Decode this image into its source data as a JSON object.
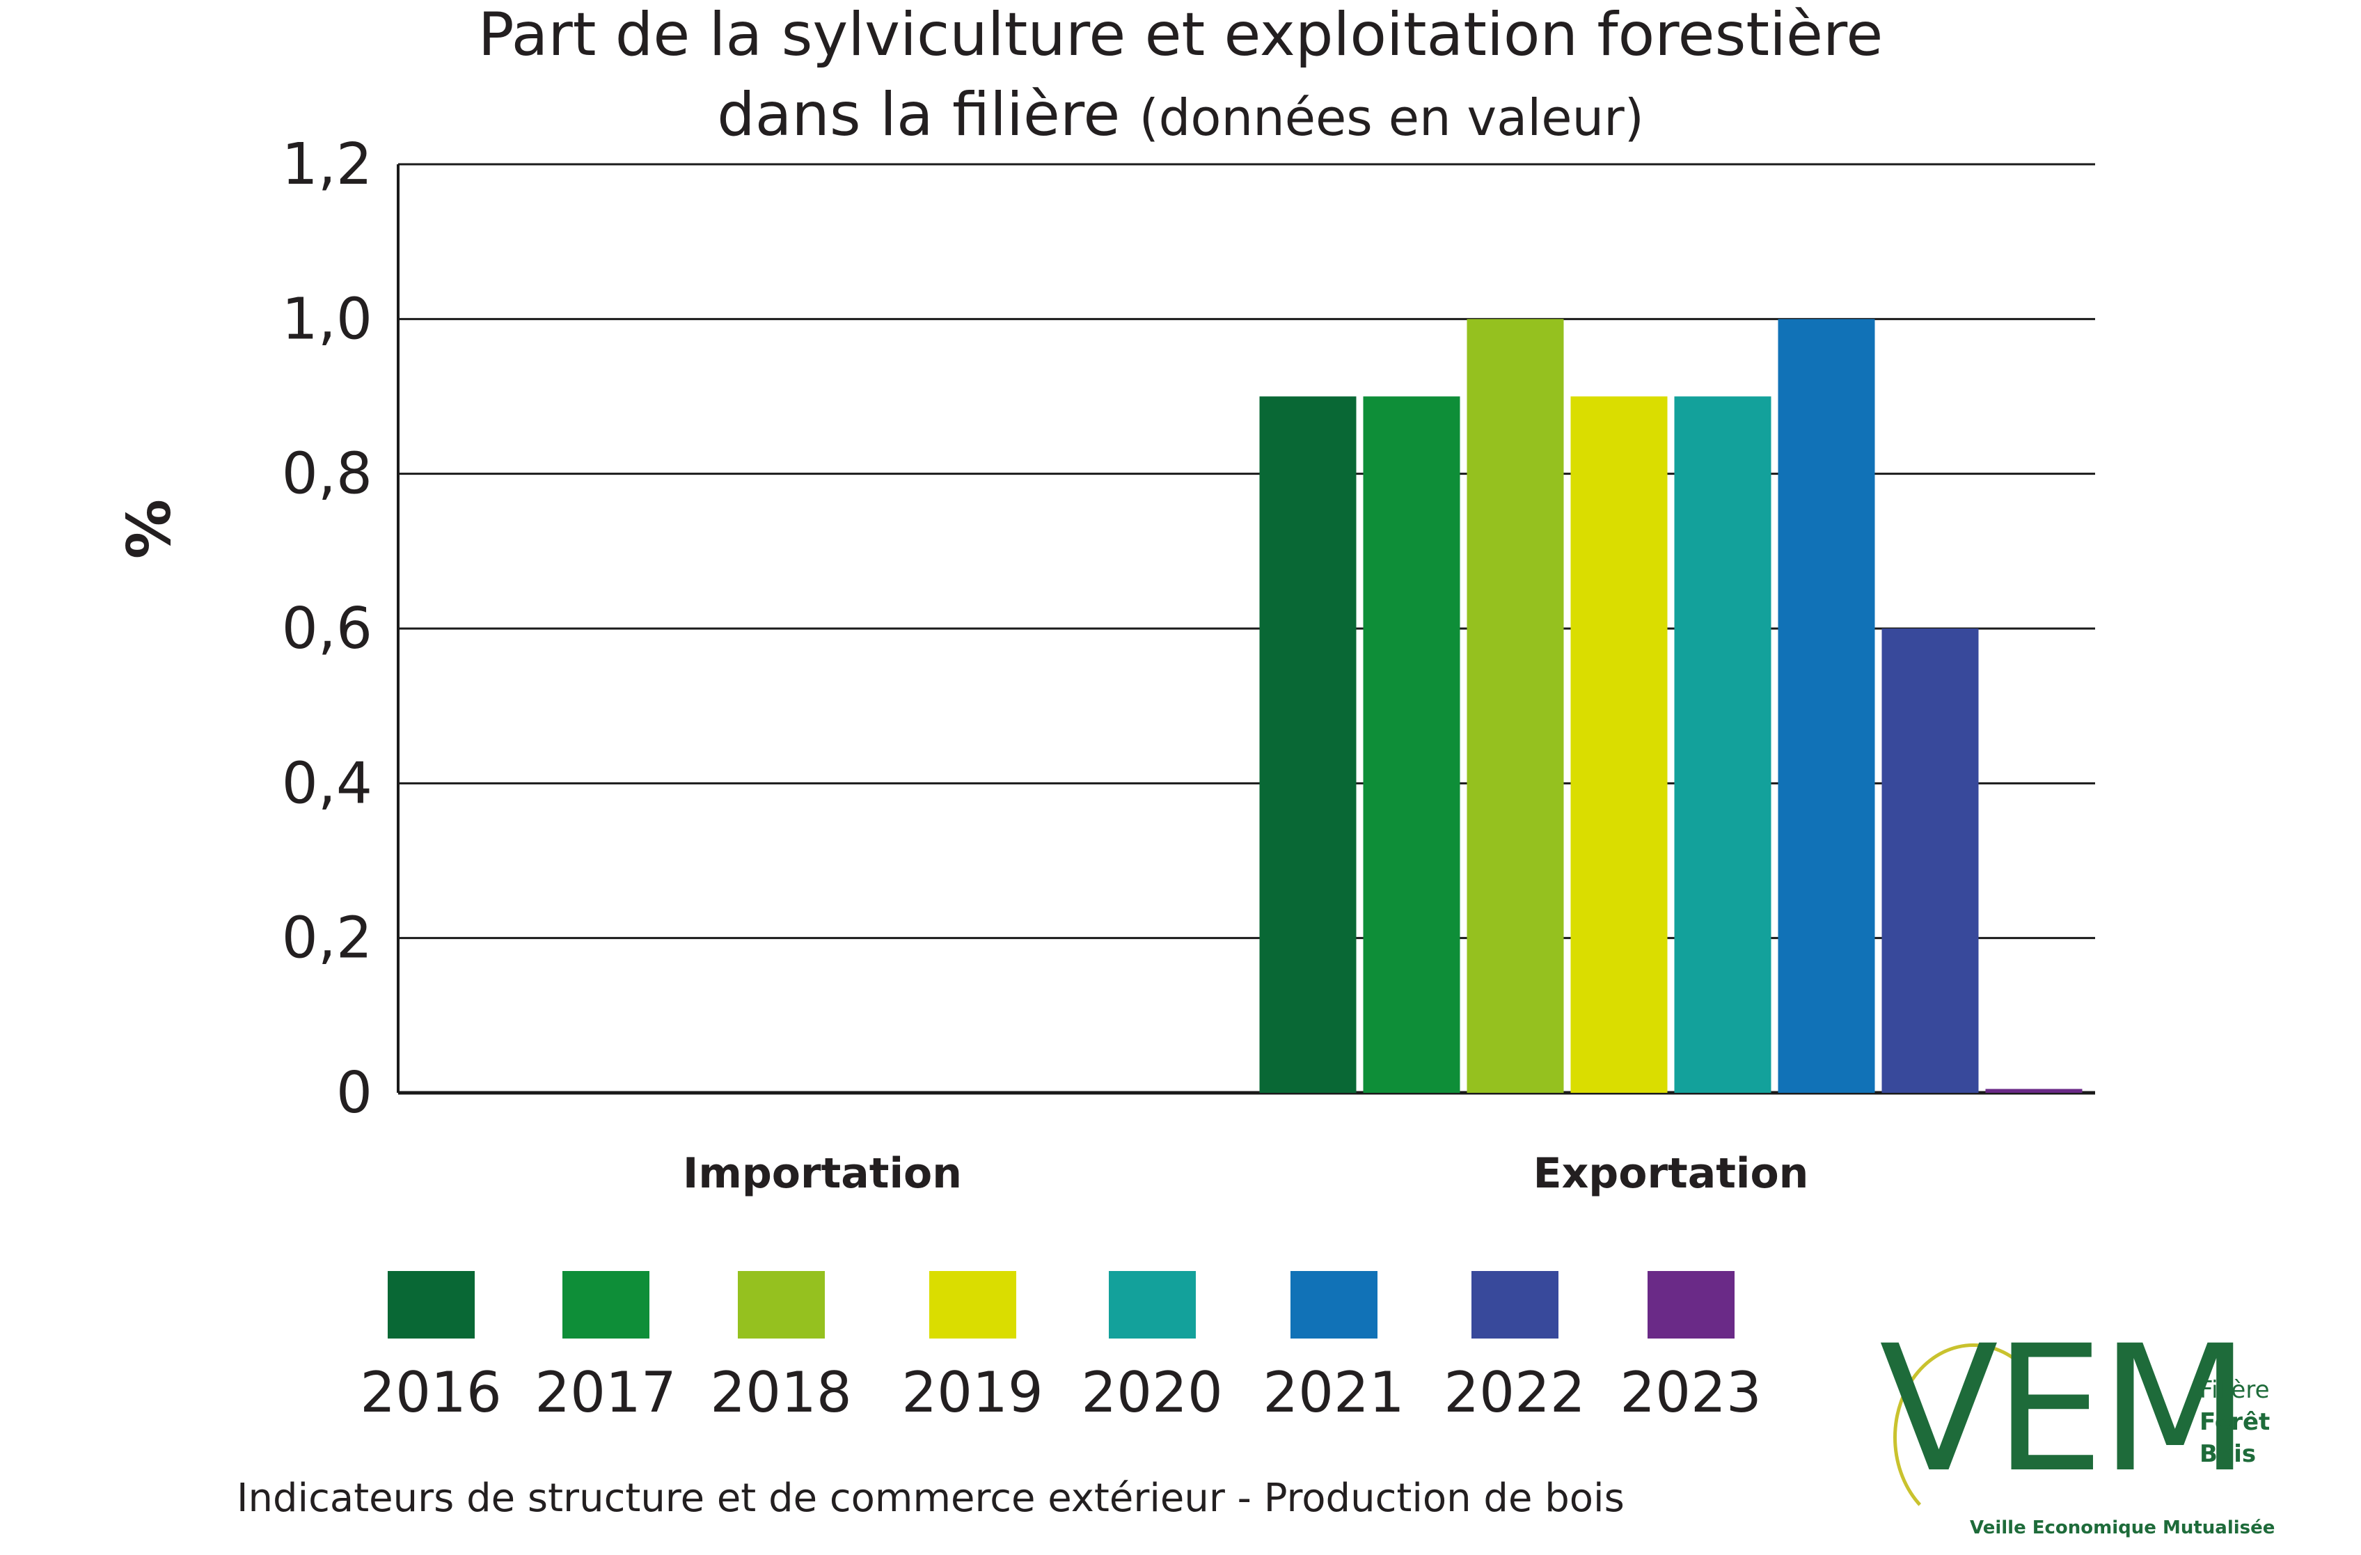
{
  "chart_data": {
    "type": "bar",
    "title_main": "Part de la sylviculture et exploitation forestière",
    "title_line2_main": "dans la filière",
    "title_line2_sub": "(données en valeur)",
    "ylabel": "%",
    "ylim": [
      0,
      1.2
    ],
    "y_ticks": [
      {
        "value": 0,
        "label": "0"
      },
      {
        "value": 0.2,
        "label": "0,2"
      },
      {
        "value": 0.4,
        "label": "0,4"
      },
      {
        "value": 0.6,
        "label": "0,6"
      },
      {
        "value": 0.8,
        "label": "0,8"
      },
      {
        "value": 1.0,
        "label": "1,0"
      },
      {
        "value": 1.2,
        "label": "1,2"
      }
    ],
    "categories": [
      "Importation",
      "Exportation"
    ],
    "series": [
      {
        "name": "2016",
        "color": "#096835",
        "values": [
          0,
          0.9
        ]
      },
      {
        "name": "2017",
        "color": "#0e8e38",
        "values": [
          0,
          0.9
        ]
      },
      {
        "name": "2018",
        "color": "#95c11f",
        "values": [
          0,
          1.0
        ]
      },
      {
        "name": "2019",
        "color": "#dadd00",
        "values": [
          0,
          0.9
        ]
      },
      {
        "name": "2020",
        "color": "#13a19b",
        "values": [
          0,
          0.9
        ]
      },
      {
        "name": "2021",
        "color": "#1172b7",
        "values": [
          0,
          1.0
        ]
      },
      {
        "name": "2022",
        "color": "#38499b",
        "values": [
          0,
          0.6
        ]
      },
      {
        "name": "2023",
        "color": "#6a2a87",
        "values": [
          0,
          0.005
        ]
      }
    ],
    "legend_position": "bottom",
    "grid": true
  },
  "footer": "Indicateurs de structure et de commerce extérieur - Production de bois",
  "logo": {
    "mark": "VEM",
    "line1": "Filière",
    "line2": "Forêt",
    "line3": "Bois",
    "tagline": "Veille Economique Mutualisée"
  }
}
